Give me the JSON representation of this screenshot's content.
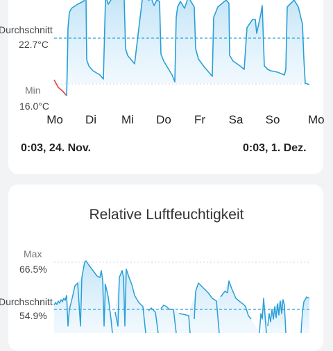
{
  "temperature": {
    "avg_label": "Durchschnitt",
    "avg_value": "22.7°C",
    "min_label": "Min",
    "min_value": "16.0°C",
    "days": [
      "Mo",
      "Di",
      "Mi",
      "Do",
      "Fr",
      "Sa",
      "So",
      "Mo"
    ],
    "start_time": "0:03,  24. Nov.",
    "end_time": "0:03,  1. Dez.",
    "line_color": "#2a9fd6",
    "below_min_color": "#e04040",
    "fill_color": "#d4ecfa"
  },
  "humidity": {
    "title": "Relative Luftfeuchtigkeit",
    "max_label": "Max",
    "max_value": "66.5%",
    "avg_label": "Durchschnitt",
    "avg_value": "54.9%",
    "line_color": "#2a9fd6",
    "fill_color": "#d4ecfa"
  }
}
